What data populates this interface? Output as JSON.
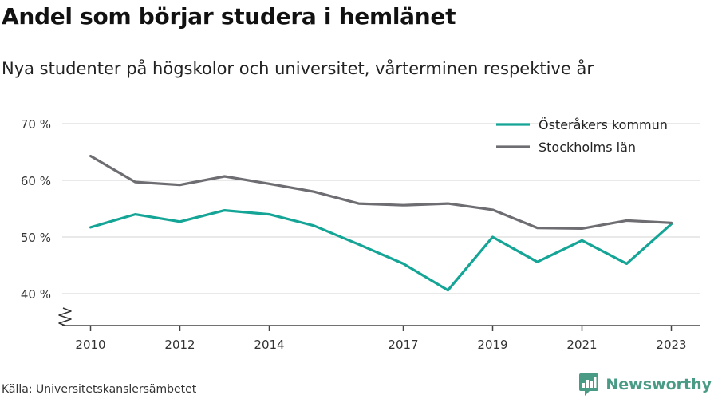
{
  "header": {
    "title": "Andel som börjar studera i hemlänet",
    "subtitle": "Nya studenter på högskolor och universitet, vårterminen respektive år"
  },
  "footer": {
    "source": "Källa: Universitetskanslersämbetet",
    "brand": "Newsworthy",
    "brand_color": "#4a9b86"
  },
  "chart_data": {
    "type": "line",
    "x": [
      2010,
      2011,
      2012,
      2013,
      2014,
      2015,
      2016,
      2017,
      2018,
      2019,
      2020,
      2021,
      2022,
      2023
    ],
    "x_ticks": [
      2010,
      2012,
      2014,
      2017,
      2019,
      2021,
      2023
    ],
    "y_ticks": [
      40,
      50,
      60,
      70
    ],
    "y_tick_suffix": " %",
    "ylim": [
      35,
      70
    ],
    "y_axis_break": true,
    "grid": true,
    "legend_position": "top-right",
    "series": [
      {
        "name": "Österåkers kommun",
        "color": "#14a597",
        "values": [
          51.7,
          54.0,
          52.7,
          54.7,
          54.0,
          52.0,
          48.7,
          45.3,
          40.6,
          50.0,
          45.6,
          49.4,
          45.3,
          52.3
        ]
      },
      {
        "name": "Stockholms län",
        "color": "#6e6d72",
        "values": [
          64.3,
          59.7,
          59.2,
          60.7,
          59.4,
          58.0,
          55.9,
          55.6,
          55.9,
          54.8,
          51.6,
          51.5,
          52.9,
          52.5
        ]
      }
    ]
  }
}
